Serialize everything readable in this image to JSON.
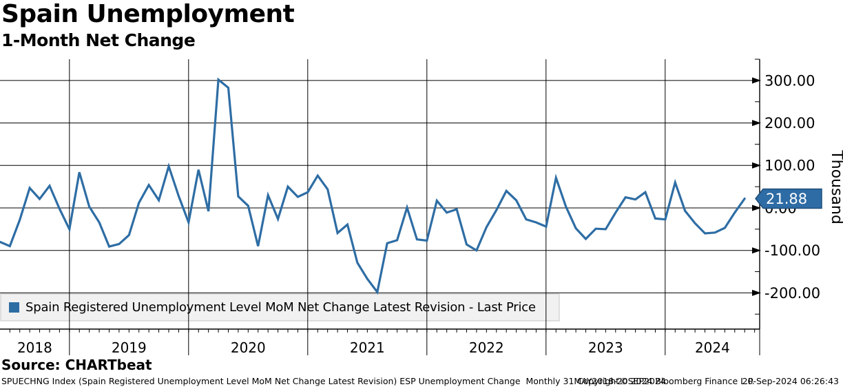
{
  "header": {
    "title": "Spain Unemployment",
    "subtitle": "1-Month Net Change"
  },
  "legend": {
    "label": "Spain Registered Unemployment Level MoM Net Change Latest Revision - Last Price",
    "marker_color": "#2e6da4"
  },
  "last_price_badge": {
    "value": "21.88",
    "fill": "#2e6ca5",
    "border": "#1f4e79",
    "text_color": "#ffffff"
  },
  "axis": {
    "y_unit_label": "Thousand",
    "y_tick_labels": [
      "300.00",
      "200.00",
      "100.00",
      "0.00",
      "-100.00",
      "-200.00"
    ],
    "y_tick_values": [
      300,
      200,
      100,
      0,
      -100,
      -200
    ],
    "y_minor_tick_values": [
      350,
      250,
      150,
      50,
      -50,
      -150,
      -250
    ],
    "x_tick_labels": [
      "2018",
      "2019",
      "2020",
      "2021",
      "2022",
      "2023",
      "2024"
    ]
  },
  "source_line": "Source: CHARTbeat",
  "footer": {
    "left": "SPUECHNG Index (Spain Registered Unemployment Level MoM Net Change Latest Revision) ESP Unemployment Change  Monthly 31MAY2018-20SEP2024",
    "center": "Copyright© 2024 Bloomberg Finance L.P.",
    "right": "20-Sep-2024 06:26:43"
  },
  "chart_data": {
    "type": "line",
    "title": "Spain Unemployment - 1-Month Net Change",
    "ylabel": "Thousand",
    "ylim": [
      -250,
      350
    ],
    "grid": true,
    "legend_position": "bottom-left",
    "x_range": "31MAY2018-20SEP2024",
    "last_value": 21.88,
    "categories": [
      "2018-05",
      "2018-06",
      "2018-07",
      "2018-08",
      "2018-09",
      "2018-10",
      "2018-11",
      "2018-12",
      "2019-01",
      "2019-02",
      "2019-03",
      "2019-04",
      "2019-05",
      "2019-06",
      "2019-07",
      "2019-08",
      "2019-09",
      "2019-10",
      "2019-11",
      "2019-12",
      "2020-01",
      "2020-02",
      "2020-03",
      "2020-04",
      "2020-05",
      "2020-06",
      "2020-07",
      "2020-08",
      "2020-09",
      "2020-10",
      "2020-11",
      "2020-12",
      "2021-01",
      "2021-02",
      "2021-03",
      "2021-04",
      "2021-05",
      "2021-06",
      "2021-07",
      "2021-08",
      "2021-09",
      "2021-10",
      "2021-11",
      "2021-12",
      "2022-01",
      "2022-02",
      "2022-03",
      "2022-04",
      "2022-05",
      "2022-06",
      "2022-07",
      "2022-08",
      "2022-09",
      "2022-10",
      "2022-11",
      "2022-12",
      "2023-01",
      "2023-02",
      "2023-03",
      "2023-04",
      "2023-05",
      "2023-06",
      "2023-07",
      "2023-08",
      "2023-09",
      "2023-10",
      "2023-11",
      "2023-12",
      "2024-01",
      "2024-02",
      "2024-03",
      "2024-04",
      "2024-05",
      "2024-06",
      "2024-07",
      "2024-08"
    ],
    "series": [
      {
        "name": "Spain Registered Unemployment Level MoM Net Change Latest Revision - Last Price",
        "color": "#2e6da4",
        "values": [
          -80,
          -90,
          -28,
          47,
          21,
          52,
          -2,
          -50,
          84,
          3,
          -34,
          -91,
          -85,
          -64,
          12,
          54,
          18,
          98,
          28,
          -34,
          90,
          -8,
          302,
          283,
          27,
          5,
          -90,
          30,
          -26,
          50,
          26,
          37,
          76,
          44,
          -59,
          -39,
          -129,
          -167,
          -198,
          -83,
          -76,
          1,
          -74,
          -77,
          17,
          -11,
          -3,
          -86,
          -100,
          -45,
          -5,
          40,
          18,
          -27,
          -34,
          -44,
          71,
          3,
          -48,
          -73,
          -49,
          -50,
          -11,
          25,
          20,
          37,
          -25,
          -27,
          60,
          -7,
          -36,
          -60,
          -58,
          -47,
          -11,
          21.88
        ]
      }
    ]
  }
}
